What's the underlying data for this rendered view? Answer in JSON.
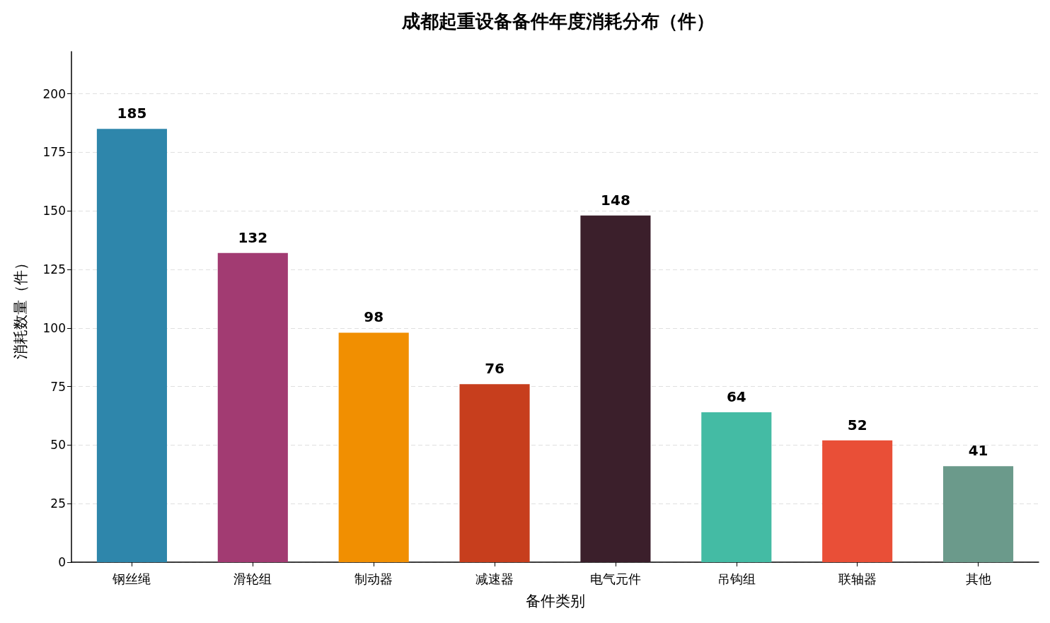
{
  "chart_data": {
    "type": "bar",
    "title": "成都起重设备备件年度消耗分布（件）",
    "xlabel": "备件类别",
    "ylabel": "消耗数量（件）",
    "categories": [
      "钢丝绳",
      "滑轮组",
      "制动器",
      "减速器",
      "电气元件",
      "吊钩组",
      "联轴器",
      "其他"
    ],
    "values": [
      185,
      132,
      98,
      76,
      148,
      64,
      52,
      41
    ],
    "colors": [
      "#2e86ab",
      "#a23b72",
      "#f18f01",
      "#c73e1d",
      "#3b1f2b",
      "#44bba4",
      "#e94f37",
      "#6b9a8b"
    ],
    "ylim": [
      0,
      218
    ],
    "yticks": [
      0,
      25,
      50,
      75,
      100,
      125,
      150,
      175,
      200
    ],
    "grid": "y",
    "data_labels": true
  }
}
